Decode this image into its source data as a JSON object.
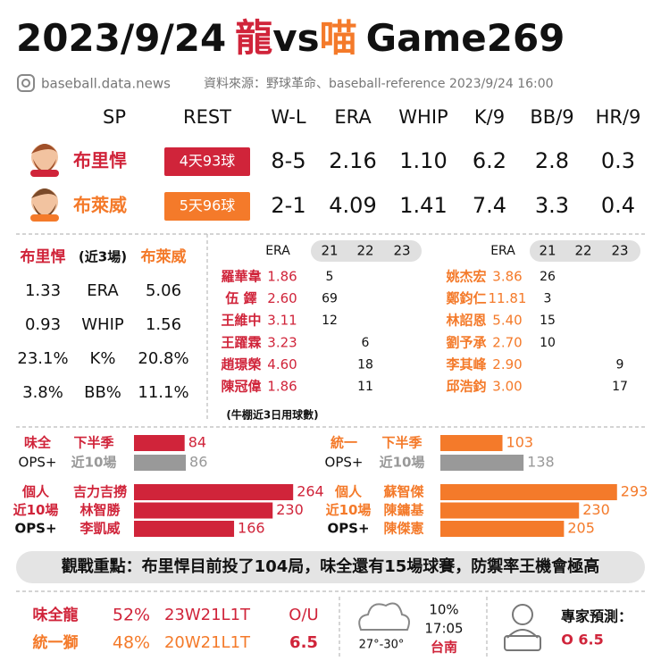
{
  "header": {
    "date": "2023/9/24",
    "team1": "龍",
    "vs": "vs",
    "team2": "喵",
    "game": "Game269",
    "handle": "baseball.data.news",
    "source": "資料來源：野球革命、baseball-reference  2023/9/24  16:00"
  },
  "starters": {
    "headers": [
      "SP",
      "REST",
      "W-L",
      "ERA",
      "WHIP",
      "K/9",
      "BB/9",
      "HR/9"
    ],
    "rows": [
      {
        "name": "布里悍",
        "rest": "4天93球",
        "stats": [
          "8-5",
          "2.16",
          "1.10",
          "6.2",
          "2.8",
          "0.3"
        ]
      },
      {
        "name": "布萊威",
        "rest": "5天96球",
        "stats": [
          "2-1",
          "4.09",
          "1.41",
          "7.4",
          "3.3",
          "0.4"
        ]
      }
    ]
  },
  "recent": {
    "headers": [
      "布里悍",
      "(近3場)",
      "布萊威"
    ],
    "rows": [
      [
        "1.33",
        "ERA",
        "5.06"
      ],
      [
        "0.93",
        "WHIP",
        "1.56"
      ],
      [
        "23.1%",
        "K%",
        "20.8%"
      ],
      [
        "3.8%",
        "BB%",
        "11.1%"
      ]
    ]
  },
  "bullpen": {
    "left": {
      "headers": [
        "ERA",
        "21",
        "22",
        "23"
      ],
      "rows": [
        [
          "羅華韋",
          "1.86",
          5,
          null,
          null
        ],
        [
          "伍 鐸",
          "2.60",
          69,
          null,
          null
        ],
        [
          "王維中",
          "3.11",
          12,
          null,
          null
        ],
        [
          "王躍霖",
          "3.23",
          null,
          6,
          null
        ],
        [
          "趙璟榮",
          "4.60",
          null,
          18,
          null
        ],
        [
          "陳冠偉",
          "1.86",
          null,
          11,
          null
        ]
      ]
    },
    "right": {
      "headers": [
        "ERA",
        "21",
        "22",
        "23"
      ],
      "rows": [
        [
          "姚杰宏",
          "3.86",
          26,
          null,
          null
        ],
        [
          "鄭鈞仁",
          "11.81",
          3,
          null,
          null
        ],
        [
          "林詔恩",
          "5.40",
          15,
          null,
          null
        ],
        [
          "劉予承",
          "2.70",
          10,
          null,
          null
        ],
        [
          "李其峰",
          "2.90",
          null,
          null,
          9
        ],
        [
          "邱浩鈞",
          "3.00",
          null,
          null,
          17
        ]
      ]
    },
    "note": "(牛棚近3日用球數)"
  },
  "ops_team": {
    "left": {
      "team": "味全",
      "metric": "OPS+",
      "bars": [
        {
          "label": "下半季",
          "value": 84
        },
        {
          "label": "近10場",
          "value": 86
        }
      ]
    },
    "right": {
      "team": "統一",
      "metric": "OPS+",
      "bars": [
        {
          "label": "下半季",
          "value": 103
        },
        {
          "label": "近10場",
          "value": 138
        }
      ]
    }
  },
  "ops_individual": {
    "left": {
      "labels": [
        "個人",
        "近10場",
        "OPS+"
      ],
      "players": [
        {
          "name": "吉力吉撈",
          "value": 264
        },
        {
          "name": "林智勝",
          "value": 230
        },
        {
          "name": "李凱威",
          "value": 166
        }
      ]
    },
    "right": {
      "labels": [
        "個人",
        "近10場",
        "OPS+"
      ],
      "players": [
        {
          "name": "蘇智傑",
          "value": 293
        },
        {
          "name": "陳鏞基",
          "value": 230
        },
        {
          "name": "陳傑憲",
          "value": 205
        }
      ]
    }
  },
  "highlight": "觀戰重點：布里悍目前投了104局，味全還有15場球賽，防禦率王機會極高",
  "footer": {
    "teams": [
      {
        "name": "味全龍",
        "pct": "52%",
        "record": "23W21L1T"
      },
      {
        "name": "統一獅",
        "pct": "48%",
        "record": "20W21L1T"
      }
    ],
    "ou_label": "O/U",
    "ou": "6.5",
    "temp": "27°-30°",
    "rain": "10%",
    "time": "17:05",
    "venue": "台南",
    "prediction_label": "專家預測：",
    "prediction": "O 6.5"
  }
}
